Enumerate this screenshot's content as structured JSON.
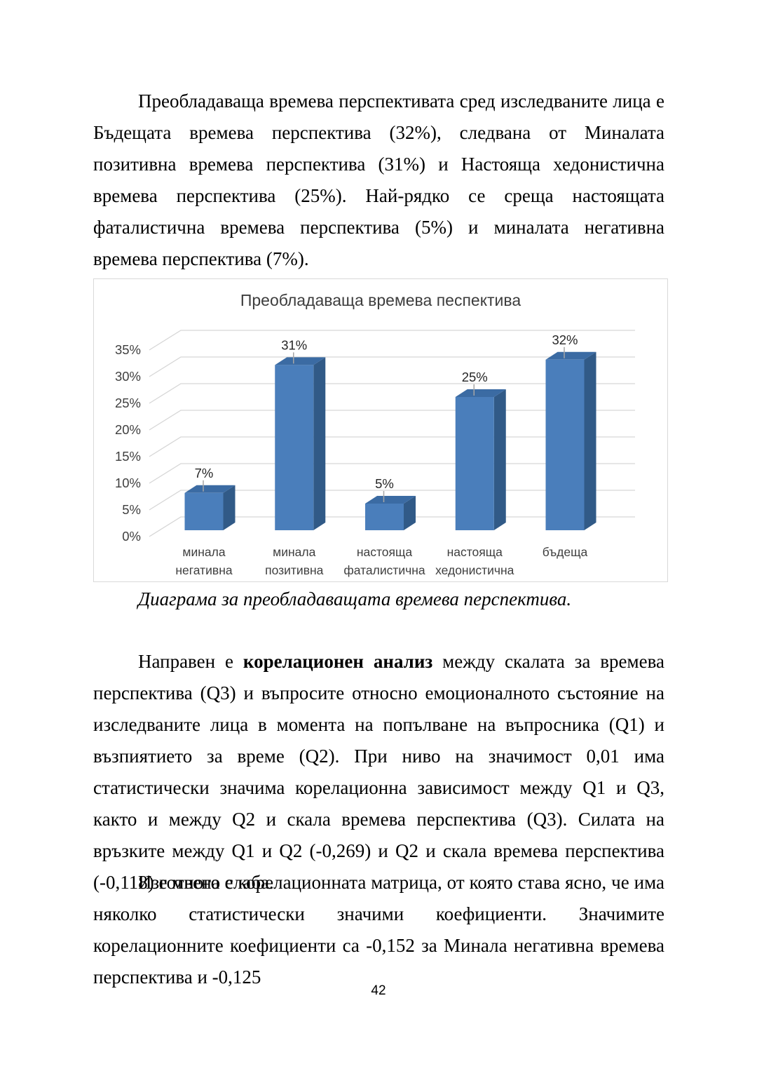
{
  "document": {
    "paragraph1": "Преобладаваща времева перспективата сред изследваните лица е Бъдещата времева перспектива (32%), следвана от Миналата позитивна времева перспектива (31%) и Настояща хедонистична времева перспектива (25%). Най-рядко се среща настоящата фаталистична  времева перспектива (5%) и миналата негативна времева перспектива (7%).",
    "chart_caption": "Диаграма за преобладаващата времева перспектива.",
    "paragraph2": {
      "before_bold": "Направен е ",
      "bold": "корелационен анализ",
      "after_bold": " между скалата за времева перспектива (Q3) и въпросите относно емоционалното състояние на изследваните лица в момента на попълване на въпросника (Q1) и възпиятието за време (Q2). При ниво на значимост 0,01 има статистически значима корелационна зависимост между Q1 и Q3, както и между Q2 и скала времева перспектива (Q3). Силата на връзките между Q1 и Q2 (-0,269) и Q2 и скала времева перспектива (-0,118) е много слаба."
    },
    "paragraph3": "Изготвена е корелационната матрица, от която става ясно, че има няколко статистически значими коефициенти. Значимите корелационните коефициенти са -0,152  за Минала негативна времева перспектива и -0,125",
    "page_number": "42"
  },
  "chart_data": {
    "type": "bar",
    "variant": "3d-column",
    "title": "Преобладаваща времева песпектива",
    "categories": [
      "минала негативна",
      "минала позитивна",
      "настояща фаталистична",
      "настояща хедонистична",
      "бъдеща"
    ],
    "values": [
      7,
      31,
      5,
      25,
      32
    ],
    "data_labels": [
      "7%",
      "31%",
      "5%",
      "25%",
      "32%"
    ],
    "xlabel": "",
    "ylabel": "",
    "ylim": [
      0,
      35
    ],
    "ytick_step": 5,
    "ytick_labels": [
      "0%",
      "5%",
      "10%",
      "15%",
      "20%",
      "25%",
      "30%",
      "35%"
    ],
    "grid": true,
    "legend": false,
    "colors": {
      "bar_front": "#4A7EBB",
      "bar_side": "#315A87",
      "bar_top": "#3B6BA3",
      "gridline": "#D6D6D6",
      "border": "#D9D9D9",
      "axis_text": "#3F3F3F",
      "data_label_text": "#262626",
      "whisker": "#A6A6A6",
      "title_text": "#3D3D3D"
    }
  }
}
